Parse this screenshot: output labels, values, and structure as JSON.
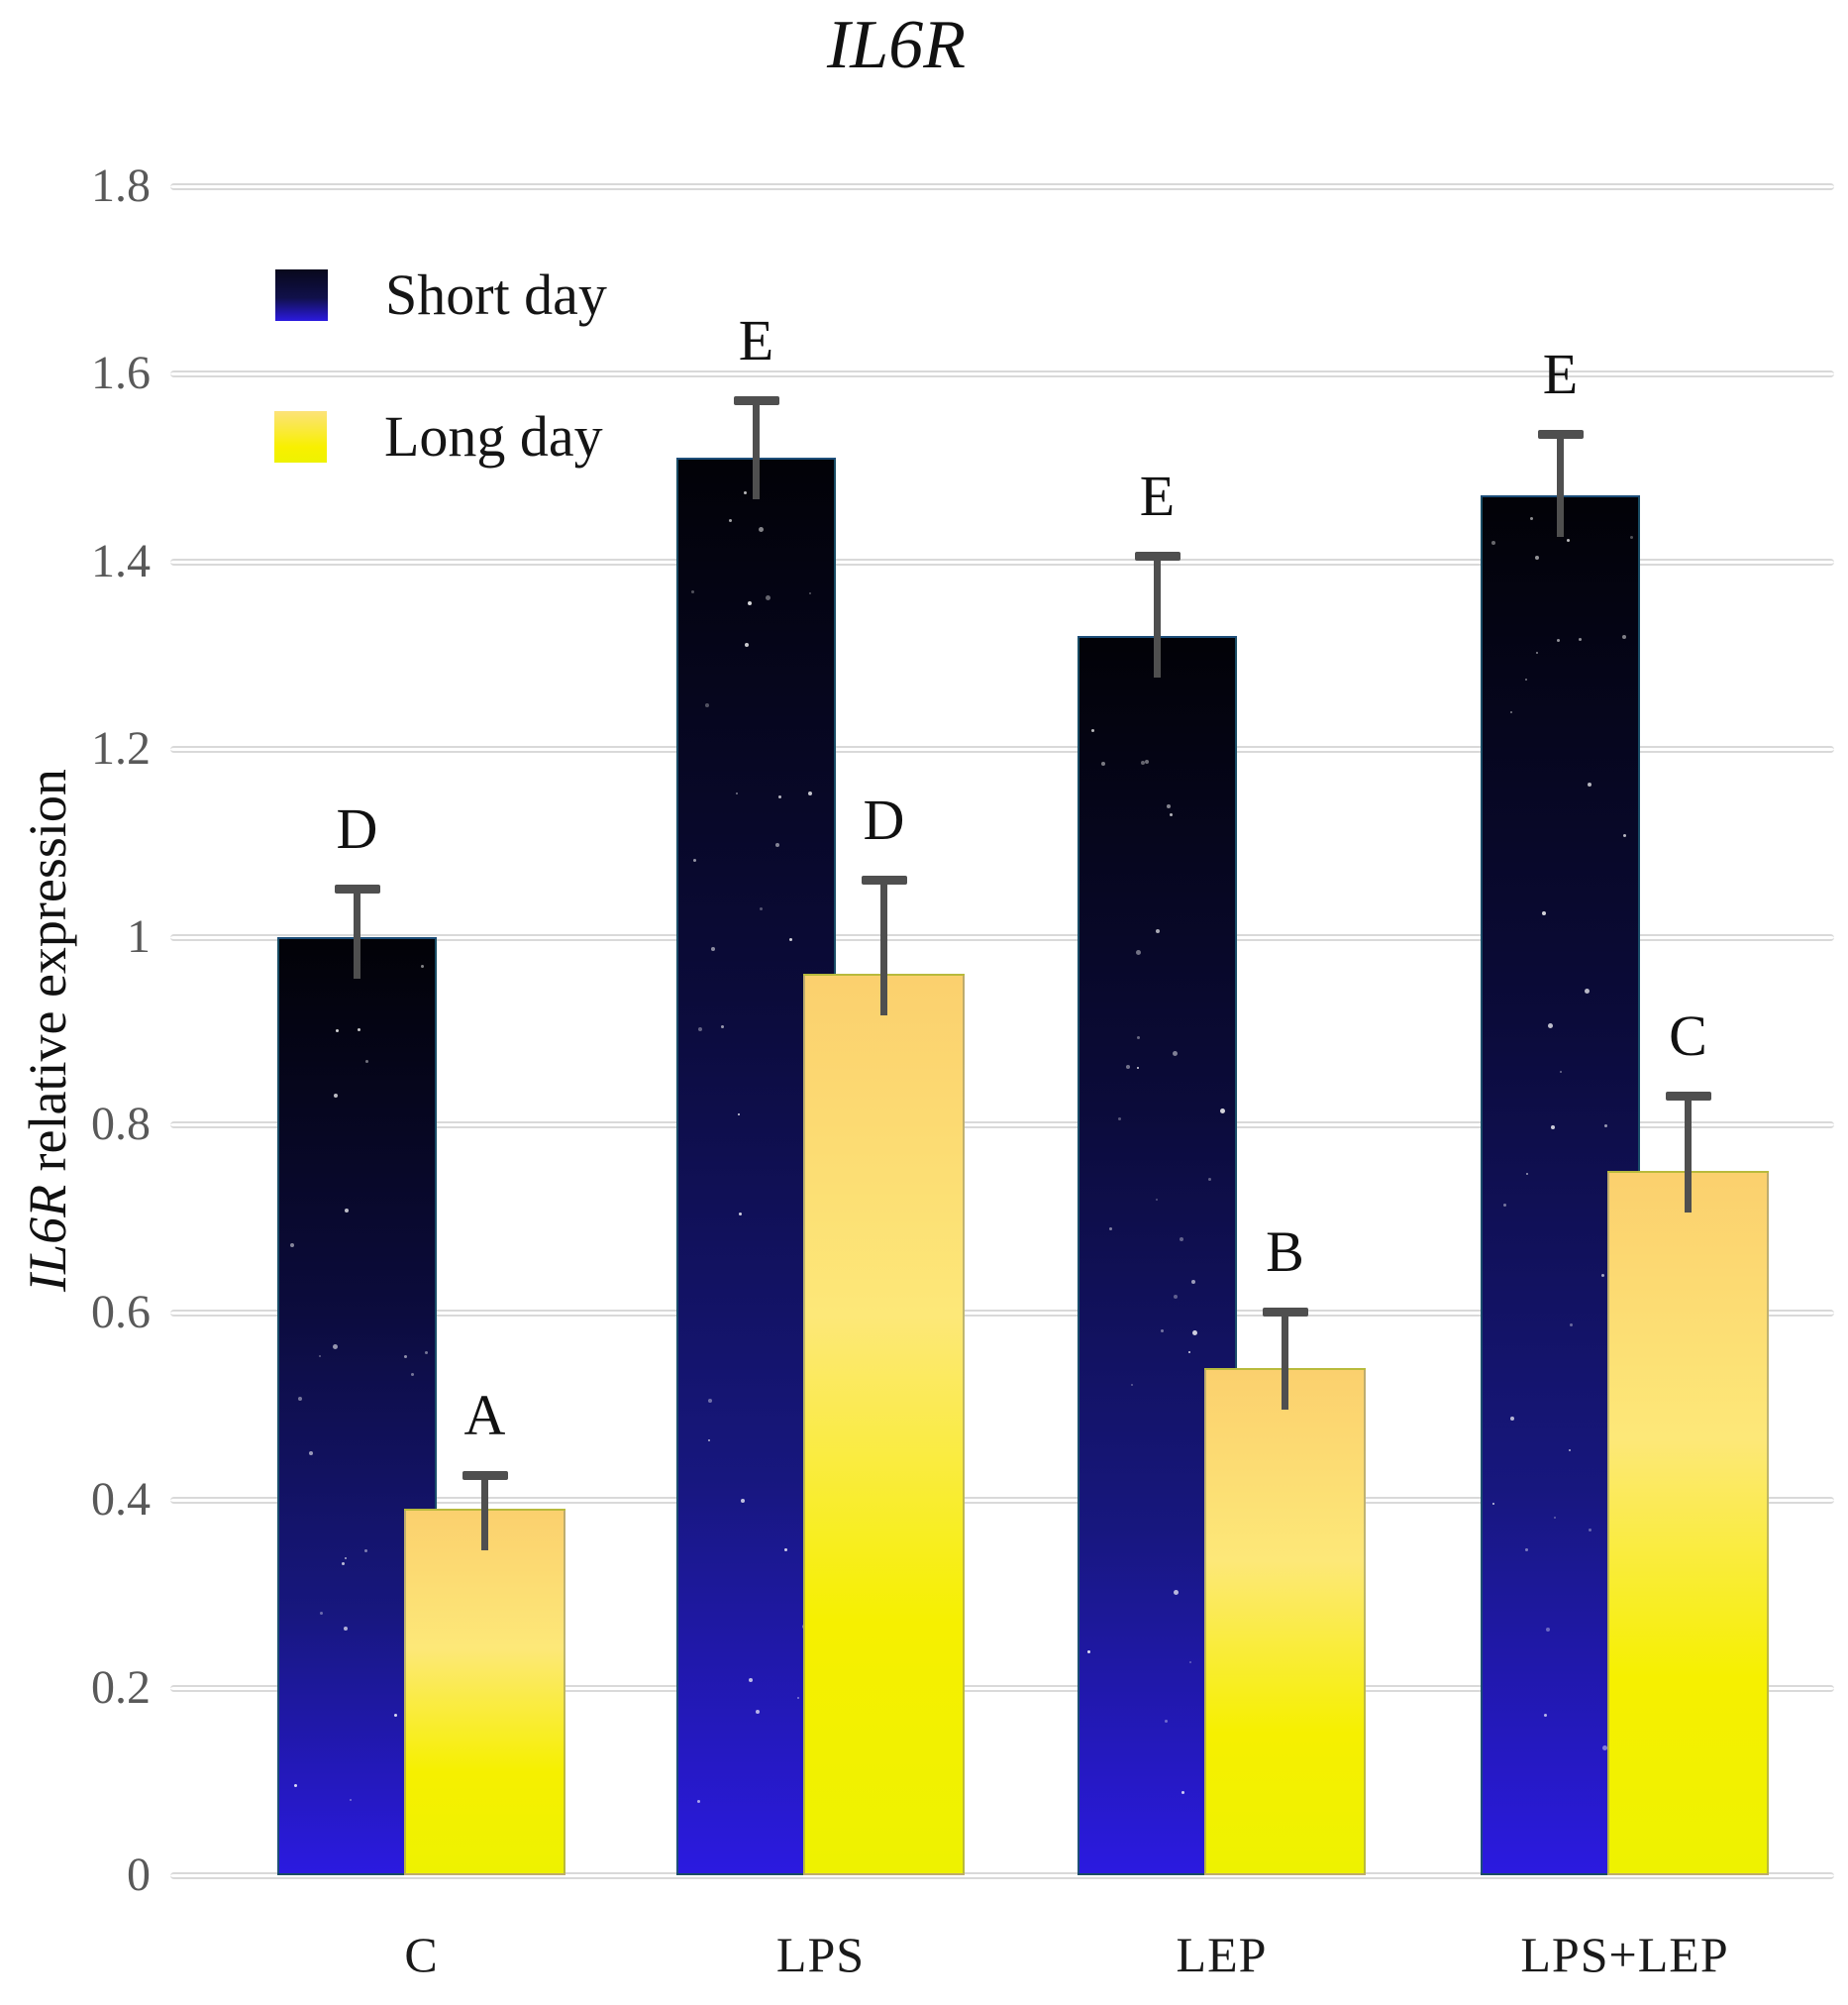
{
  "chart_data": {
    "type": "bar",
    "title": "IL6R",
    "ylabel_gene": "IL6R",
    "ylabel_rest": " relative expression",
    "categories": [
      "C",
      "LPS",
      "LEP",
      "LPS+LEP"
    ],
    "series": [
      {
        "name": "Short day",
        "values": [
          1.0,
          1.51,
          1.32,
          1.47
        ],
        "errors": [
          0.05,
          0.06,
          0.085,
          0.065
        ],
        "letters": [
          "D",
          "E",
          "E",
          "E"
        ],
        "gradient": [
          "#020207",
          "#0b0b3a",
          "#17177e",
          "#2b1ae0"
        ]
      },
      {
        "name": "Long day",
        "values": [
          0.39,
          0.96,
          0.54,
          0.75
        ],
        "errors": [
          0.035,
          0.1,
          0.06,
          0.08
        ],
        "letters": [
          "A",
          "D",
          "B",
          "C"
        ],
        "gradient": [
          "#fbd06e",
          "#fde878",
          "#f6f000",
          "#eef200"
        ]
      }
    ],
    "y_ticks": [
      "1.8",
      "1.6",
      "1.4",
      "1.2",
      "1",
      "0.8",
      "0.6",
      "0.4",
      "0.2",
      "0"
    ],
    "y_tick_values": [
      1.8,
      1.6,
      1.4,
      1.2,
      1.0,
      0.8,
      0.6,
      0.4,
      0.2,
      0
    ],
    "ylim": [
      0,
      1.8
    ],
    "grid": true,
    "legend_position": "top-left",
    "colors": {
      "grid": "#d9d9d9",
      "tick_label": "#595959",
      "error_bar": "#4f4f4f",
      "short_day_bottom": "#2b1ae0",
      "long_day_bottom": "#eef200"
    }
  }
}
